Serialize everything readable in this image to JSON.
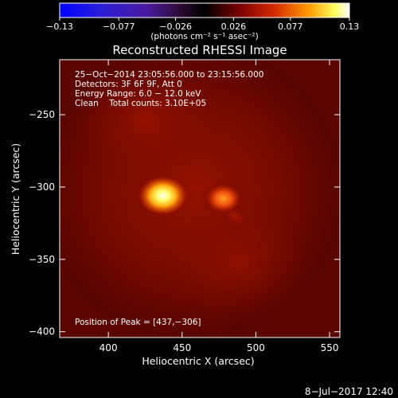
{
  "chart_data": {
    "type": "heatmap",
    "title": "Reconstructed RHESSI Image",
    "xlabel": "Heliocentric X (arcsec)",
    "ylabel": "Heliocentric Y (arcsec)",
    "xlim": [
      367,
      557
    ],
    "ylim": [
      -404,
      -212
    ],
    "x_ticks": [
      {
        "value": 400,
        "label": "400"
      },
      {
        "value": 450,
        "label": "450"
      },
      {
        "value": 500,
        "label": "500"
      },
      {
        "value": 550,
        "label": "550"
      }
    ],
    "y_ticks": [
      {
        "value": -250,
        "label": "−250"
      },
      {
        "value": -300,
        "label": "−300"
      },
      {
        "value": -350,
        "label": "−350"
      },
      {
        "value": -400,
        "label": "−400"
      }
    ],
    "colorbar": {
      "min": -0.13,
      "max": 0.13,
      "units": "(photons cm⁻² s⁻¹ asec⁻²)",
      "ticks": [
        {
          "value": -0.13,
          "label": "−0.13"
        },
        {
          "value": -0.077,
          "label": "−0.077"
        },
        {
          "value": -0.026,
          "label": "−0.026"
        },
        {
          "value": 0.026,
          "label": "0.026"
        },
        {
          "value": 0.077,
          "label": "0.077"
        },
        {
          "value": 0.13,
          "label": "0.13"
        }
      ]
    },
    "annotations": [
      "25−Oct−2014 23:05:56.000 to 23:15:56.000",
      "Detectors: 3F 6F 9F, Att 0",
      "Energy Range: 6.0 − 12.0 keV",
      "Clean    Total counts: 3.10E+05"
    ],
    "peak_label": "Position of Peak = [437,−306]",
    "sources": [
      {
        "x": 437,
        "y": -306,
        "flux": 0.13
      },
      {
        "x": 478,
        "y": -308,
        "flux": 0.085
      }
    ]
  },
  "footer": {
    "timestamp": "8−Jul−2017 12:40"
  }
}
